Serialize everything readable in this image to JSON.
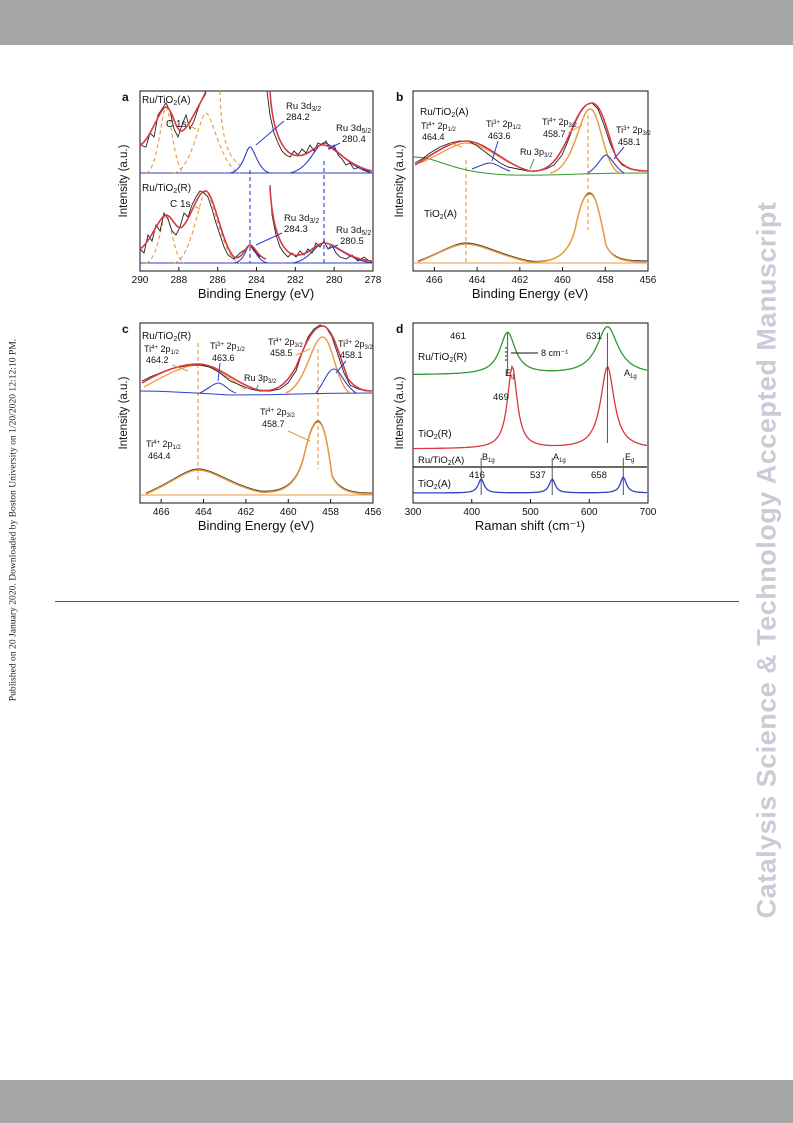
{
  "page": {
    "side_stamp": "Published on 20 January 2020. Downloaded by Boston University on 1/20/2020 12:12:10 PM.",
    "watermark": "Catalysis Science & Technology Accepted Manuscript",
    "colors": {
      "band": "#a6a6a6",
      "watermark": "#c9ccd6"
    }
  },
  "chart_data": [
    {
      "panel": "a",
      "type": "line",
      "xlabel": "Binding Energy (eV)",
      "ylabel": "Intensity (a.u.)",
      "xlim": [
        290,
        278
      ],
      "xticks": [
        "290",
        "288",
        "286",
        "284",
        "282",
        "280",
        "278"
      ],
      "reversed_x": true,
      "samples": [
        {
          "name": "Ru/TiO2(A)",
          "peaks": [
            {
              "label": "C 1s",
              "center": 288.6,
              "kind": "dashed"
            },
            {
              "label": "C 1s",
              "center": 286.0,
              "kind": "dashed"
            },
            {
              "label": "Ru 3d3/2",
              "value": "284.2",
              "center": 284.2,
              "kind": "fit"
            },
            {
              "label": "Ru 3d5/2",
              "value": "280.4",
              "center": 280.4,
              "kind": "fit"
            }
          ]
        },
        {
          "name": "Ru/TiO2(R)",
          "peaks": [
            {
              "label": "C 1s",
              "center": 288.6,
              "kind": "dashed"
            },
            {
              "label": "C 1s",
              "center": 286.0,
              "kind": "dashed"
            },
            {
              "label": "Ru 3d3/2",
              "value": "284.3",
              "center": 284.3,
              "kind": "fit"
            },
            {
              "label": "Ru 3d5/2",
              "value": "280.5",
              "center": 280.5,
              "kind": "fit"
            }
          ]
        }
      ]
    },
    {
      "panel": "b",
      "type": "line",
      "xlabel": "Binding Energy (eV)",
      "ylabel": "Intensity (a.u.)",
      "xlim": [
        467,
        456
      ],
      "xticks": [
        "466",
        "464",
        "462",
        "460",
        "458",
        "456"
      ],
      "reversed_x": true,
      "samples": [
        {
          "name": "Ru/TiO2(A)",
          "peaks": [
            {
              "label": "Ti4+ 2p1/2",
              "value": "464.4",
              "center": 464.4
            },
            {
              "label": "Ti3+ 2p1/2",
              "value": "463.6",
              "center": 463.6
            },
            {
              "label": "Ru 3p3/2",
              "value": "",
              "center": 461.2
            },
            {
              "label": "Ti4+ 2p3/2",
              "value": "458.7",
              "center": 458.7
            },
            {
              "label": "Ti3+ 2p3/2",
              "value": "458.1",
              "center": 458.1
            }
          ]
        },
        {
          "name": "TiO2(A)",
          "peaks": [
            {
              "label": "Ti4+ 2p1/2",
              "center": 464.4
            },
            {
              "label": "Ti4+ 2p3/2",
              "center": 458.7
            }
          ]
        }
      ]
    },
    {
      "panel": "c",
      "type": "line",
      "xlabel": "Binding Energy (eV)",
      "ylabel": "Intensity (a.u.)",
      "xlim": [
        467,
        456
      ],
      "xticks": [
        "466",
        "464",
        "462",
        "460",
        "458",
        "456"
      ],
      "reversed_x": true,
      "samples": [
        {
          "name": "Ru/TiO2(R)",
          "peaks": [
            {
              "label": "Ti4+ 2p1/2",
              "value": "464.2",
              "center": 464.2
            },
            {
              "label": "Ti3+ 2p1/2",
              "value": "463.6",
              "center": 463.6
            },
            {
              "label": "Ru 3p3/2",
              "value": "",
              "center": 461.2
            },
            {
              "label": "Ti4+ 2p3/2",
              "value": "458.5",
              "center": 458.5
            },
            {
              "label": "Ti3+ 2p3/2",
              "value": "458.1",
              "center": 458.1
            }
          ]
        },
        {
          "name": "",
          "peaks": [
            {
              "label": "Ti4+ 2p1/2",
              "value": "464.4",
              "center": 464.4
            },
            {
              "label": "Ti4+ 2p3/2",
              "value": "458.7",
              "center": 458.7
            }
          ]
        }
      ]
    },
    {
      "panel": "d",
      "type": "line",
      "xlabel": "Raman shift (cm⁻¹)",
      "ylabel": "Intensity (a.u.)",
      "xlim": [
        300,
        700
      ],
      "xticks": [
        "300",
        "400",
        "500",
        "600",
        "700"
      ],
      "shift_label": "8 cm⁻¹",
      "series": [
        {
          "name": "Ru/TiO2(R)",
          "color": "#2e9a2e",
          "peaks": [
            461,
            631
          ]
        },
        {
          "name": "TiO2(R)",
          "color": "#d8383f",
          "peaks": [
            469,
            631
          ]
        },
        {
          "name": "Ru/TiO2(A)",
          "color": "#111111",
          "peaks": []
        },
        {
          "name": "TiO2(A)",
          "color": "#2f3fc8",
          "peaks": [
            416,
            537,
            658
          ]
        }
      ],
      "peak_labels": [
        "461",
        "631",
        "469",
        "416",
        "537",
        "658"
      ],
      "modes": [
        {
          "label": "Eg",
          "position": 469
        },
        {
          "label": "A1g",
          "position": 631
        },
        {
          "label": "B1g",
          "position": 416
        },
        {
          "label": "A1g",
          "position": 537
        },
        {
          "label": "Eg",
          "position": 658
        }
      ]
    }
  ]
}
